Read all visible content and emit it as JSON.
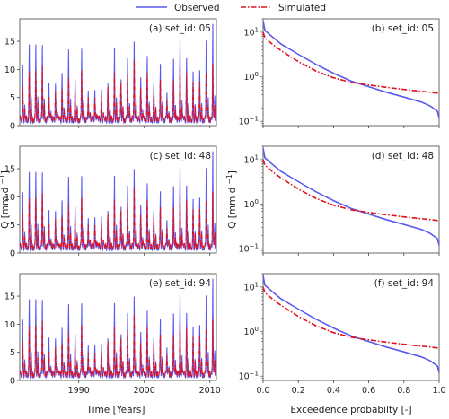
{
  "legend": {
    "observed": "Observed",
    "simulated": "Simulated",
    "observed_color": "#5a5af0",
    "simulated_color": "#e0101c"
  },
  "chart_data": {
    "type": "line",
    "layout": "3x2 grid of panels",
    "hydrograph": {
      "xlabel": "Time [Years]",
      "ylabel": "Q [mm d",
      "ylabel_sup": "−1",
      "ylabel_close": "]",
      "xlim": [
        1981,
        2011
      ],
      "ylim": [
        0,
        19
      ],
      "xticks": [
        1990,
        2000,
        2010
      ],
      "yticks": [
        0,
        5,
        10,
        15
      ],
      "observed_annual_peaks": [
        10.6,
        14.5,
        15.0,
        15.2,
        8.2,
        7.5,
        9.1,
        13.5,
        8.5,
        14.5,
        6.8,
        6.5,
        6.2,
        7.2,
        14.0,
        8.8,
        12.8,
        15.5,
        8.5,
        12.2,
        7.5,
        11.5,
        6.5,
        12.5,
        15.5,
        11.8,
        9.5,
        10.2,
        16.0,
        19.0
      ],
      "simulated_annual_peaks": [
        6.5,
        9.5,
        10.2,
        11.2,
        5.5,
        6.0,
        6.2,
        8.2,
        6.0,
        10.5,
        5.5,
        5.0,
        5.0,
        6.5,
        9.5,
        8.0,
        9.5,
        12.0,
        6.5,
        9.0,
        6.0,
        8.5,
        5.0,
        8.5,
        10.5,
        9.0,
        7.5,
        8.0,
        10.0,
        11.5
      ]
    },
    "fdc": {
      "xlabel": "Exceedence probabilty [-]",
      "ylabel": "Q [mm d",
      "ylabel_sup": "−1",
      "ylabel_close": "]",
      "xlim": [
        0,
        1
      ],
      "ylim_log": [
        0.08,
        20
      ],
      "xticks": [
        "0.0",
        "0.2",
        "0.4",
        "0.6",
        "0.8",
        "1.0"
      ],
      "yticks": [
        {
          "base": "10",
          "exp": "−1"
        },
        {
          "base": "10",
          "exp": "0"
        },
        {
          "base": "10",
          "exp": "1"
        }
      ],
      "observed": {
        "p": [
          0.0,
          0.01,
          0.05,
          0.1,
          0.2,
          0.3,
          0.4,
          0.5,
          0.6,
          0.7,
          0.8,
          0.9,
          0.95,
          0.99,
          1.0
        ],
        "q": [
          18,
          11,
          8,
          5.5,
          3.2,
          1.9,
          1.2,
          0.8,
          0.6,
          0.45,
          0.35,
          0.27,
          0.22,
          0.17,
          0.12
        ]
      },
      "simulated": {
        "p": [
          0.0,
          0.01,
          0.05,
          0.1,
          0.2,
          0.3,
          0.4,
          0.5,
          0.6,
          0.7,
          0.8,
          0.9,
          0.95,
          0.99,
          1.0
        ],
        "q": [
          10,
          7.5,
          5.5,
          3.9,
          2.2,
          1.35,
          0.95,
          0.75,
          0.65,
          0.58,
          0.52,
          0.47,
          0.45,
          0.43,
          0.42
        ]
      }
    },
    "panels": [
      {
        "row": 0,
        "hydro_label": "(a) set_id: 05",
        "fdc_label": "(b) set_id: 05"
      },
      {
        "row": 1,
        "hydro_label": "(c) set_id: 48",
        "fdc_label": "(d) set_id: 48"
      },
      {
        "row": 2,
        "hydro_label": "(e) set_id: 94",
        "fdc_label": "(f) set_id: 94"
      }
    ]
  }
}
